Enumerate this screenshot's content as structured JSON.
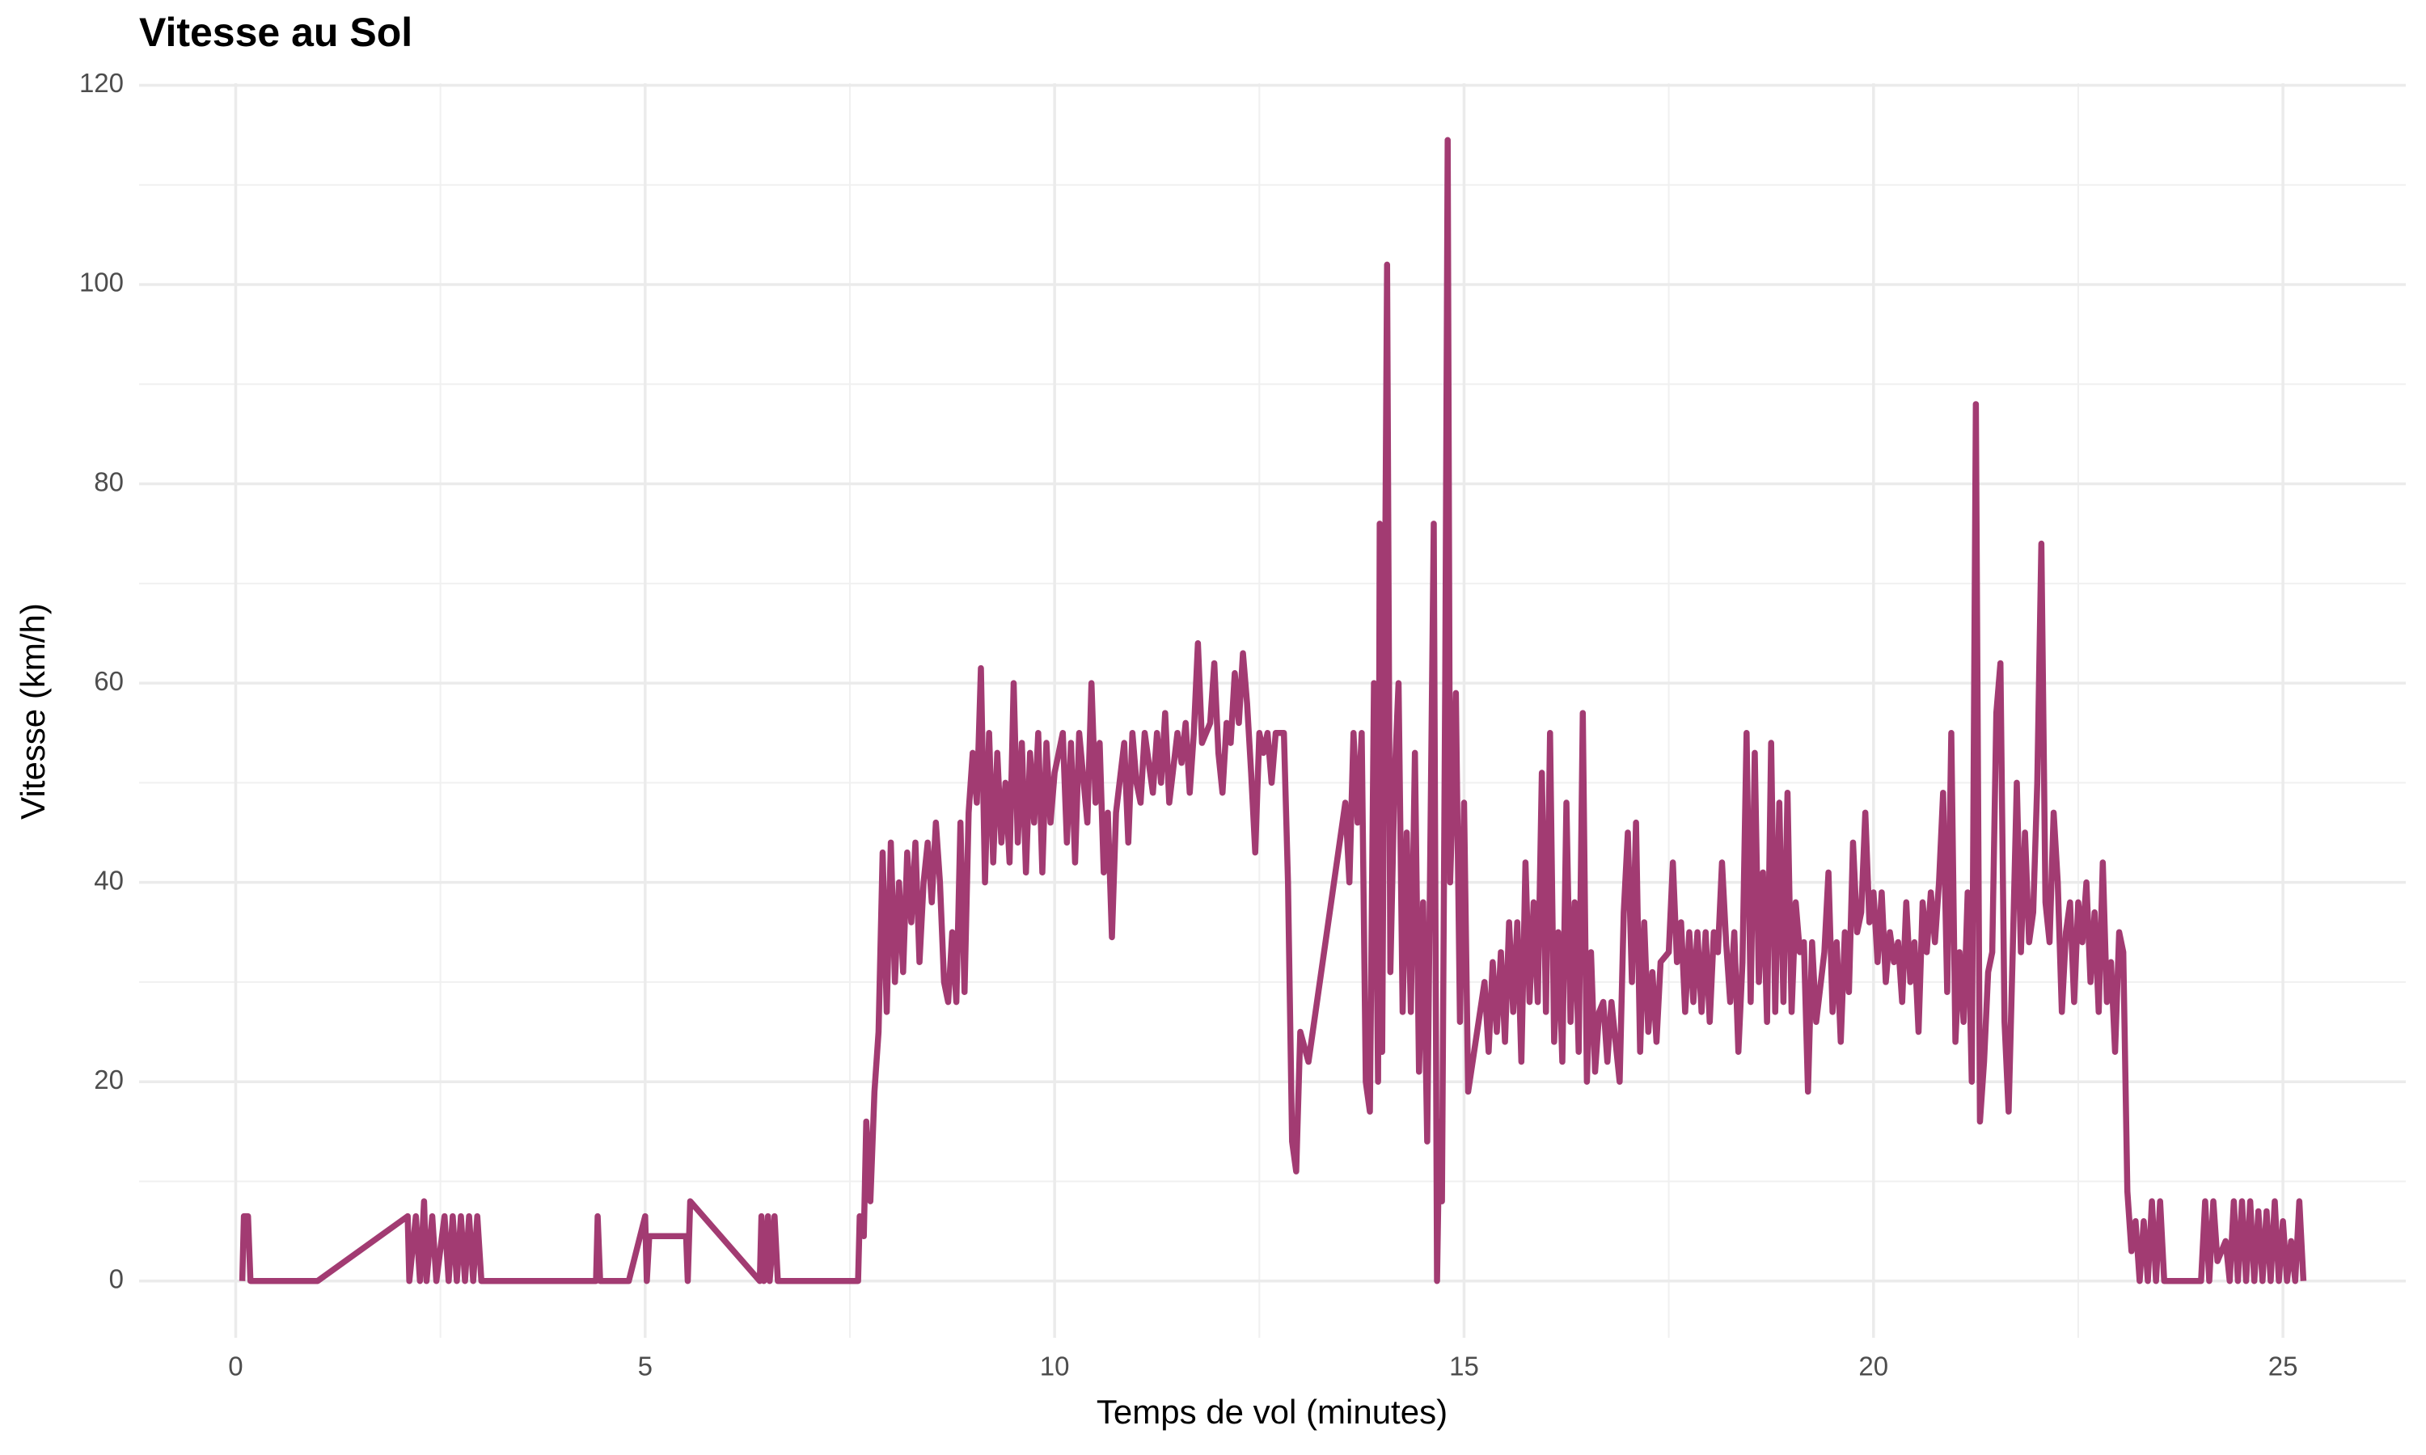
{
  "chart_data": {
    "type": "line",
    "title": "Vitesse au Sol",
    "x_label": "Temps de vol (minutes)",
    "y_label": "Vitesse (km/h)",
    "color": "#a23b72",
    "x": [
      0.08,
      0.1,
      0.15,
      0.18,
      1.0,
      2.1,
      2.12,
      2.2,
      2.25,
      2.3,
      2.33,
      2.4,
      2.45,
      2.55,
      2.6,
      2.65,
      2.7,
      2.75,
      2.8,
      2.85,
      2.9,
      2.95,
      3.0,
      4.4,
      4.42,
      4.45,
      4.8,
      5.0,
      5.02,
      5.05,
      5.5,
      5.52,
      5.55,
      6.4,
      6.42,
      6.45,
      6.5,
      6.52,
      6.58,
      6.62,
      7.6,
      7.62,
      7.67,
      7.7,
      7.75,
      7.8,
      7.85,
      7.9,
      7.95,
      8.0,
      8.05,
      8.1,
      8.15,
      8.2,
      8.25,
      8.3,
      8.35,
      8.4,
      8.45,
      8.5,
      8.55,
      8.6,
      8.65,
      8.7,
      8.75,
      8.8,
      8.85,
      8.9,
      8.95,
      9.0,
      9.05,
      9.1,
      9.15,
      9.2,
      9.25,
      9.3,
      9.35,
      9.4,
      9.45,
      9.5,
      9.55,
      9.6,
      9.65,
      9.7,
      9.75,
      9.8,
      9.85,
      9.9,
      9.95,
      10.0,
      10.1,
      10.15,
      10.2,
      10.25,
      10.3,
      10.4,
      10.45,
      10.5,
      10.55,
      10.6,
      10.65,
      10.7,
      10.75,
      10.85,
      10.9,
      10.95,
      11.0,
      11.05,
      11.1,
      11.2,
      11.25,
      11.3,
      11.35,
      11.4,
      11.5,
      11.55,
      11.6,
      11.65,
      11.7,
      11.75,
      11.8,
      11.9,
      11.95,
      12.0,
      12.05,
      12.1,
      12.15,
      12.2,
      12.25,
      12.3,
      12.35,
      12.4,
      12.45,
      12.5,
      12.55,
      12.6,
      12.65,
      12.7,
      12.8,
      12.85,
      12.9,
      12.95,
      13.0,
      13.1,
      13.55,
      13.6,
      13.65,
      13.7,
      13.75,
      13.8,
      13.85,
      13.9,
      13.95,
      13.97,
      14.0,
      14.06,
      14.1,
      14.15,
      14.2,
      14.25,
      14.3,
      14.35,
      14.4,
      14.45,
      14.5,
      14.55,
      14.63,
      14.67,
      14.7,
      14.73,
      14.77,
      14.8,
      14.83,
      14.9,
      14.95,
      15.0,
      15.05,
      15.25,
      15.3,
      15.35,
      15.4,
      15.45,
      15.5,
      15.55,
      15.6,
      15.65,
      15.7,
      15.75,
      15.8,
      15.85,
      15.9,
      15.95,
      16.0,
      16.05,
      16.1,
      16.15,
      16.2,
      16.25,
      16.3,
      16.35,
      16.4,
      16.45,
      16.5,
      16.55,
      16.6,
      16.65,
      16.7,
      16.75,
      16.8,
      16.85,
      16.9,
      16.95,
      17.0,
      17.05,
      17.1,
      17.15,
      17.2,
      17.25,
      17.3,
      17.35,
      17.4,
      17.5,
      17.55,
      17.6,
      17.65,
      17.7,
      17.75,
      17.8,
      17.85,
      17.9,
      17.95,
      18.0,
      18.05,
      18.1,
      18.15,
      18.2,
      18.25,
      18.3,
      18.35,
      18.4,
      18.45,
      18.5,
      18.55,
      18.6,
      18.65,
      18.7,
      18.75,
      18.8,
      18.85,
      18.9,
      18.95,
      19.0,
      19.05,
      19.1,
      19.15,
      19.2,
      19.25,
      19.3,
      19.4,
      19.45,
      19.5,
      19.55,
      19.6,
      19.65,
      19.7,
      19.75,
      19.8,
      19.85,
      19.9,
      19.95,
      20.0,
      20.05,
      20.1,
      20.15,
      20.2,
      20.25,
      20.3,
      20.35,
      20.4,
      20.45,
      20.5,
      20.55,
      20.6,
      20.65,
      20.7,
      20.75,
      20.8,
      20.85,
      20.9,
      20.95,
      21.0,
      21.05,
      21.1,
      21.15,
      21.2,
      21.25,
      21.3,
      21.35,
      21.4,
      21.45,
      21.5,
      21.55,
      21.6,
      21.65,
      21.7,
      21.75,
      21.8,
      21.85,
      21.9,
      21.95,
      22.0,
      22.05,
      22.1,
      22.15,
      22.2,
      22.25,
      22.3,
      22.35,
      22.4,
      22.45,
      22.5,
      22.55,
      22.6,
      22.65,
      22.7,
      22.75,
      22.8,
      22.85,
      22.9,
      22.95,
      23.0,
      23.05,
      23.1,
      23.15,
      23.2,
      23.25,
      23.3,
      23.35,
      23.4,
      23.45,
      23.5,
      23.55,
      23.6,
      24.0,
      24.05,
      24.1,
      24.15,
      24.2,
      24.3,
      24.35,
      24.4,
      24.45,
      24.5,
      24.55,
      24.6,
      24.65,
      24.7,
      24.75,
      24.8,
      24.85,
      24.9,
      24.95,
      25.0,
      25.05,
      25.1,
      25.15,
      25.2,
      25.25
    ],
    "values": [
      0,
      6.5,
      6.5,
      0,
      0,
      6.5,
      0,
      6.5,
      0,
      8,
      0,
      6.5,
      0,
      6.5,
      0,
      6.5,
      0,
      6.5,
      0,
      6.5,
      0,
      6.5,
      0,
      0,
      6.5,
      0,
      0,
      6.5,
      0,
      4.5,
      4.5,
      0,
      8,
      0,
      6.5,
      0,
      6.5,
      0,
      6.5,
      0,
      0,
      6.5,
      4.5,
      16,
      8,
      19,
      25,
      43,
      27,
      44,
      30,
      40,
      31,
      43,
      36,
      44,
      32,
      40,
      44,
      38,
      46,
      40,
      30,
      28,
      35,
      28,
      46,
      29,
      47,
      53,
      48,
      61.5,
      40,
      55,
      42,
      53,
      44,
      50,
      42,
      60,
      44,
      54,
      41,
      53,
      46,
      55,
      41,
      54,
      46,
      51,
      55,
      44,
      54,
      42,
      55,
      46,
      60,
      48,
      54,
      41,
      47,
      34.5,
      47,
      54,
      44,
      55,
      50,
      48,
      55,
      49,
      55,
      50,
      57,
      48,
      55,
      52,
      56,
      49,
      55,
      64,
      54,
      56,
      62,
      53,
      49,
      56,
      54,
      61,
      56,
      63,
      58,
      51,
      43,
      55,
      53,
      55,
      50,
      55,
      55,
      40,
      14,
      11,
      25,
      22,
      48,
      40,
      55,
      46,
      55,
      20,
      17,
      60,
      20,
      76,
      23,
      102,
      31,
      50,
      60,
      27,
      45,
      27,
      53,
      21,
      38,
      14,
      76,
      0,
      16,
      8,
      60,
      114.5,
      40,
      59,
      26,
      48,
      19,
      30,
      23,
      32,
      25,
      33,
      24,
      36,
      27,
      36,
      22,
      42,
      28,
      38,
      28,
      51,
      27,
      55,
      24,
      35,
      22,
      48,
      26,
      38,
      23,
      57,
      20,
      33,
      21,
      27,
      28,
      22,
      28,
      24,
      20,
      37,
      45,
      30,
      46,
      23,
      36,
      25,
      31,
      24,
      32,
      33,
      42,
      32,
      36,
      27,
      35,
      28,
      35,
      27,
      35,
      26,
      35,
      33,
      42,
      34,
      28,
      35,
      23,
      32,
      55,
      28,
      53,
      30,
      41,
      26,
      54,
      27,
      48,
      28,
      49,
      27,
      38,
      33,
      34,
      19,
      34,
      26,
      33,
      41,
      27,
      34,
      24,
      35,
      29,
      44,
      35,
      37,
      47,
      36,
      39,
      32,
      39,
      30,
      35,
      32,
      34,
      28,
      38,
      30,
      34,
      25,
      38,
      33,
      39,
      34,
      40,
      49,
      29,
      55,
      24,
      33,
      26,
      39,
      20,
      88,
      16,
      22,
      31,
      33,
      57,
      62,
      26,
      17,
      33,
      50,
      33,
      45,
      34,
      37,
      50,
      74,
      38,
      34,
      47,
      40,
      27,
      35,
      38,
      28,
      38,
      34,
      40,
      30,
      37,
      27,
      42,
      28,
      32,
      23,
      35,
      33,
      9,
      3,
      6,
      0,
      6,
      0,
      8,
      0,
      8,
      0,
      0,
      0,
      8,
      0,
      8,
      2,
      4,
      0,
      8,
      0,
      8,
      0,
      8,
      0,
      7,
      0,
      7,
      0,
      8,
      0,
      6,
      0,
      4,
      0,
      8,
      0
    ],
    "xlim": [
      -1.18,
      26.5
    ],
    "ylim": [
      -5.7,
      120.2
    ],
    "xticks": [
      0,
      5,
      10,
      15,
      20,
      25
    ],
    "yticks": [
      0,
      20,
      40,
      60,
      80,
      100,
      120
    ],
    "xminor": [
      2.5,
      7.5,
      12.5,
      17.5,
      22.5
    ],
    "yminor": [
      10,
      30,
      50,
      70,
      90,
      110
    ],
    "grid": true
  }
}
